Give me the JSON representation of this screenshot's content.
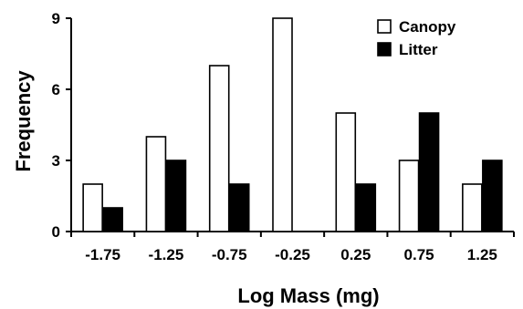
{
  "chart_data": {
    "type": "bar",
    "title": "",
    "xlabel": "Log Mass (mg)",
    "ylabel": "Frequency",
    "categories": [
      "-1.75",
      "-1.25",
      "-0.75",
      "-0.25",
      "0.25",
      "0.75",
      "1.25"
    ],
    "series": [
      {
        "name": "Canopy",
        "values": [
          2,
          4,
          7,
          9,
          5,
          3,
          2
        ],
        "fill": "#ffffff",
        "stroke": "#000000"
      },
      {
        "name": "Litter",
        "values": [
          1,
          3,
          2,
          0,
          2,
          5,
          3
        ],
        "fill": "#000000",
        "stroke": "#000000"
      }
    ],
    "ylim": [
      0,
      9
    ],
    "yticks": [
      0,
      3,
      6,
      9
    ],
    "grid": false,
    "legend_position": "top-right"
  }
}
